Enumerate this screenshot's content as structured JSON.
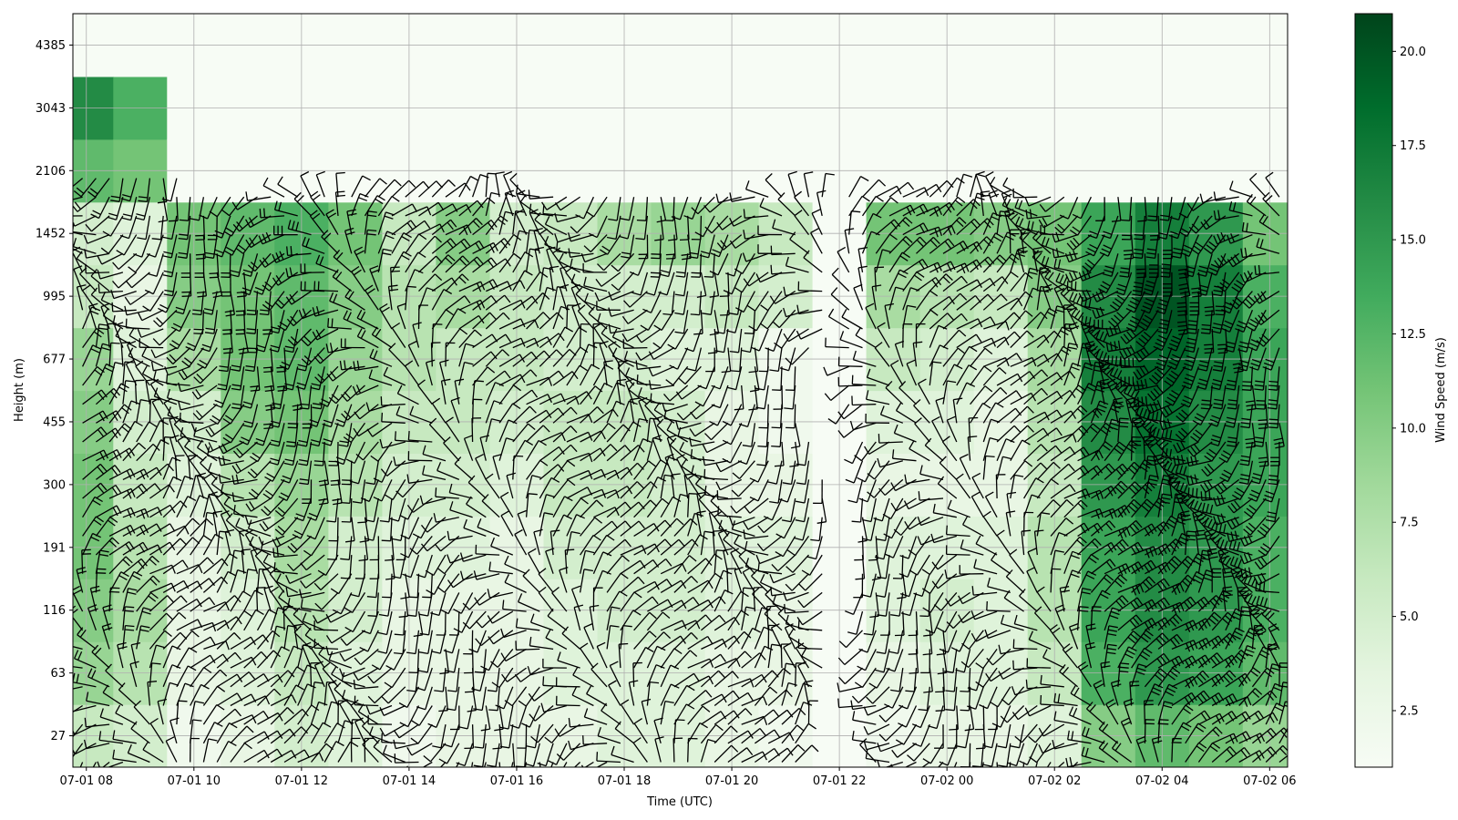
{
  "chart_data": {
    "type": "heatmap",
    "title": "",
    "xlabel": "Time (UTC)",
    "ylabel": "Height (m)",
    "x_ticks": [
      "07-01 08",
      "07-01 10",
      "07-01 12",
      "07-01 14",
      "07-01 16",
      "07-01 18",
      "07-01 20",
      "07-01 22",
      "07-02 00",
      "07-02 02",
      "07-02 04",
      "07-02 06"
    ],
    "x_range": [
      "07-01 07:45",
      "07-02 06:20"
    ],
    "y_ticks": [
      "27",
      "63",
      "116",
      "191",
      "300",
      "455",
      "677",
      "995",
      "1452",
      "2106",
      "3043",
      "4385"
    ],
    "grid": true,
    "colormap": "Greens",
    "colorbar": {
      "label": "Wind Speed (m/s)",
      "min": 1.0,
      "max": 21.0,
      "ticks": [
        "2.5",
        "5.0",
        "7.5",
        "10.0",
        "12.5",
        "15.0",
        "17.5",
        "20.0"
      ],
      "colors": [
        "#f7fcf5",
        "#e5f5e0",
        "#c7e9c0",
        "#a1d99b",
        "#74c476",
        "#41ab5d",
        "#238b45",
        "#006d2c",
        "#00441b"
      ]
    },
    "overlay": "wind barbs (direction and speed at each time/height)",
    "wind_speed_profile_mps": [
      {
        "time": "07-01 08",
        "speed_by_level": [
          6,
          9,
          10,
          11,
          11,
          10,
          9,
          6,
          5,
          12,
          16,
          1
        ]
      },
      {
        "time": "07-01 09",
        "speed_by_level": [
          5,
          7,
          8,
          7,
          6,
          5,
          4,
          3,
          4,
          11,
          13,
          1
        ]
      },
      {
        "time": "07-01 10",
        "speed_by_level": [
          2,
          3,
          3,
          3,
          4,
          5,
          8,
          10,
          11,
          1,
          1,
          1
        ]
      },
      {
        "time": "07-01 11",
        "speed_by_level": [
          3,
          4,
          4,
          5,
          7,
          10,
          11,
          11,
          12,
          1,
          1,
          1
        ]
      },
      {
        "time": "07-01 12",
        "speed_by_level": [
          5,
          6,
          7,
          8,
          9,
          11,
          12,
          12,
          13,
          1,
          1,
          1
        ]
      },
      {
        "time": "07-01 13",
        "speed_by_level": [
          4,
          4,
          5,
          5,
          7,
          8,
          9,
          10,
          11,
          1,
          1,
          1
        ]
      },
      {
        "time": "07-01 14",
        "speed_by_level": [
          2,
          3,
          3,
          4,
          5,
          6,
          7,
          7,
          6,
          1,
          1,
          1
        ]
      },
      {
        "time": "07-01 15",
        "speed_by_level": [
          3,
          3,
          3,
          4,
          5,
          6,
          6,
          8,
          10,
          1,
          1,
          1
        ]
      },
      {
        "time": "07-01 16",
        "speed_by_level": [
          3,
          3,
          3,
          3,
          4,
          5,
          6,
          6,
          5,
          1,
          1,
          1
        ]
      },
      {
        "time": "07-01 17",
        "speed_by_level": [
          3,
          4,
          4,
          5,
          6,
          6,
          5,
          5,
          6,
          1,
          1,
          1
        ]
      },
      {
        "time": "07-01 18",
        "speed_by_level": [
          4,
          4,
          5,
          5,
          6,
          6,
          5,
          5,
          8,
          1,
          1,
          1
        ]
      },
      {
        "time": "07-01 19",
        "speed_by_level": [
          4,
          4,
          5,
          5,
          5,
          5,
          4,
          5,
          9,
          1,
          1,
          1
        ]
      },
      {
        "time": "07-01 20",
        "speed_by_level": [
          3,
          3,
          4,
          4,
          3,
          3,
          4,
          6,
          8,
          1,
          1,
          1
        ]
      },
      {
        "time": "07-01 21",
        "speed_by_level": [
          2,
          3,
          3,
          4,
          3,
          2,
          2,
          5,
          6,
          1,
          1,
          1
        ]
      },
      {
        "time": "07-01 22",
        "speed_by_level": [
          1,
          1,
          1,
          1,
          1,
          1,
          1,
          1,
          1,
          1,
          1,
          1
        ]
      },
      {
        "time": "07-01 23",
        "speed_by_level": [
          2,
          3,
          4,
          4,
          3,
          4,
          6,
          8,
          11,
          1,
          1,
          1
        ]
      },
      {
        "time": "07-02 00",
        "speed_by_level": [
          3,
          4,
          5,
          4,
          3,
          4,
          5,
          7,
          11,
          1,
          1,
          1
        ]
      },
      {
        "time": "07-02 01",
        "speed_by_level": [
          3,
          4,
          4,
          4,
          3,
          3,
          4,
          6,
          10,
          1,
          1,
          1
        ]
      },
      {
        "time": "07-02 02",
        "speed_by_level": [
          4,
          6,
          7,
          7,
          6,
          7,
          8,
          10,
          11,
          1,
          1,
          1
        ]
      },
      {
        "time": "07-02 03",
        "speed_by_level": [
          10,
          13,
          14,
          14,
          15,
          16,
          17,
          16,
          14,
          1,
          1,
          1
        ]
      },
      {
        "time": "07-02 04",
        "speed_by_level": [
          12,
          15,
          16,
          16,
          17,
          18,
          19,
          20,
          17,
          1,
          1,
          1
        ]
      },
      {
        "time": "07-02 05",
        "speed_by_level": [
          11,
          14,
          15,
          15,
          15,
          16,
          17,
          17,
          15,
          1,
          1,
          1
        ]
      },
      {
        "time": "07-02 06",
        "speed_by_level": [
          9,
          12,
          13,
          13,
          14,
          14,
          14,
          13,
          11,
          1,
          1,
          1
        ]
      }
    ]
  }
}
